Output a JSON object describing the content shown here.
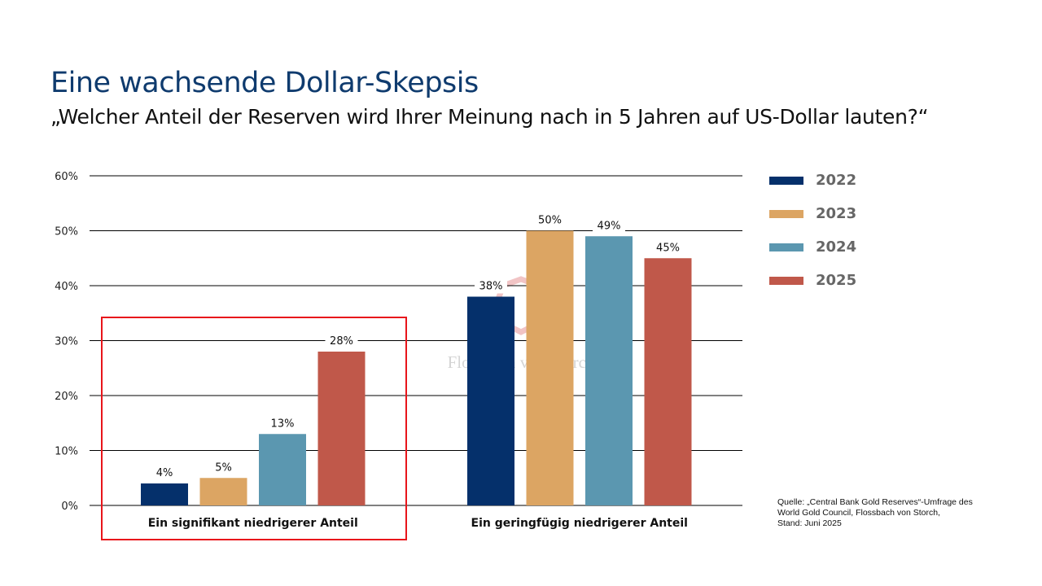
{
  "title": "Eine wachsende Dollar-Skepsis",
  "subtitle": "„Welcher Anteil der Reserven wird Ihrer Meinung nach in 5 Jahren auf US-Dollar lauten?“",
  "source": [
    "Quelle: „Central Bank Gold Reserves“-Umfrage des",
    "World Gold Council, Flossbach von Storch,",
    "Stand: Juni 2025"
  ],
  "watermark": "Flossbach von Storch",
  "chart_data": {
    "type": "bar",
    "title": "Eine wachsende Dollar-Skepsis",
    "categories": [
      "Ein signifikant niedrigerer Anteil",
      "Ein geringfügig niedrigerer Anteil"
    ],
    "series": [
      {
        "name": "2022",
        "color": "#05306b",
        "values": [
          4,
          38
        ]
      },
      {
        "name": "2023",
        "color": "#dca563",
        "values": [
          5,
          50
        ]
      },
      {
        "name": "2024",
        "color": "#5b97b0",
        "values": [
          13,
          49
        ]
      },
      {
        "name": "2025",
        "color": "#c0584a",
        "values": [
          28,
          45
        ]
      }
    ],
    "yticks": [
      "0%",
      "10%",
      "20%",
      "30%",
      "40%",
      "50%",
      "60%"
    ],
    "ylim": [
      0,
      60
    ],
    "grid": true,
    "legend": "right",
    "highlight_color": "#e8151b"
  }
}
